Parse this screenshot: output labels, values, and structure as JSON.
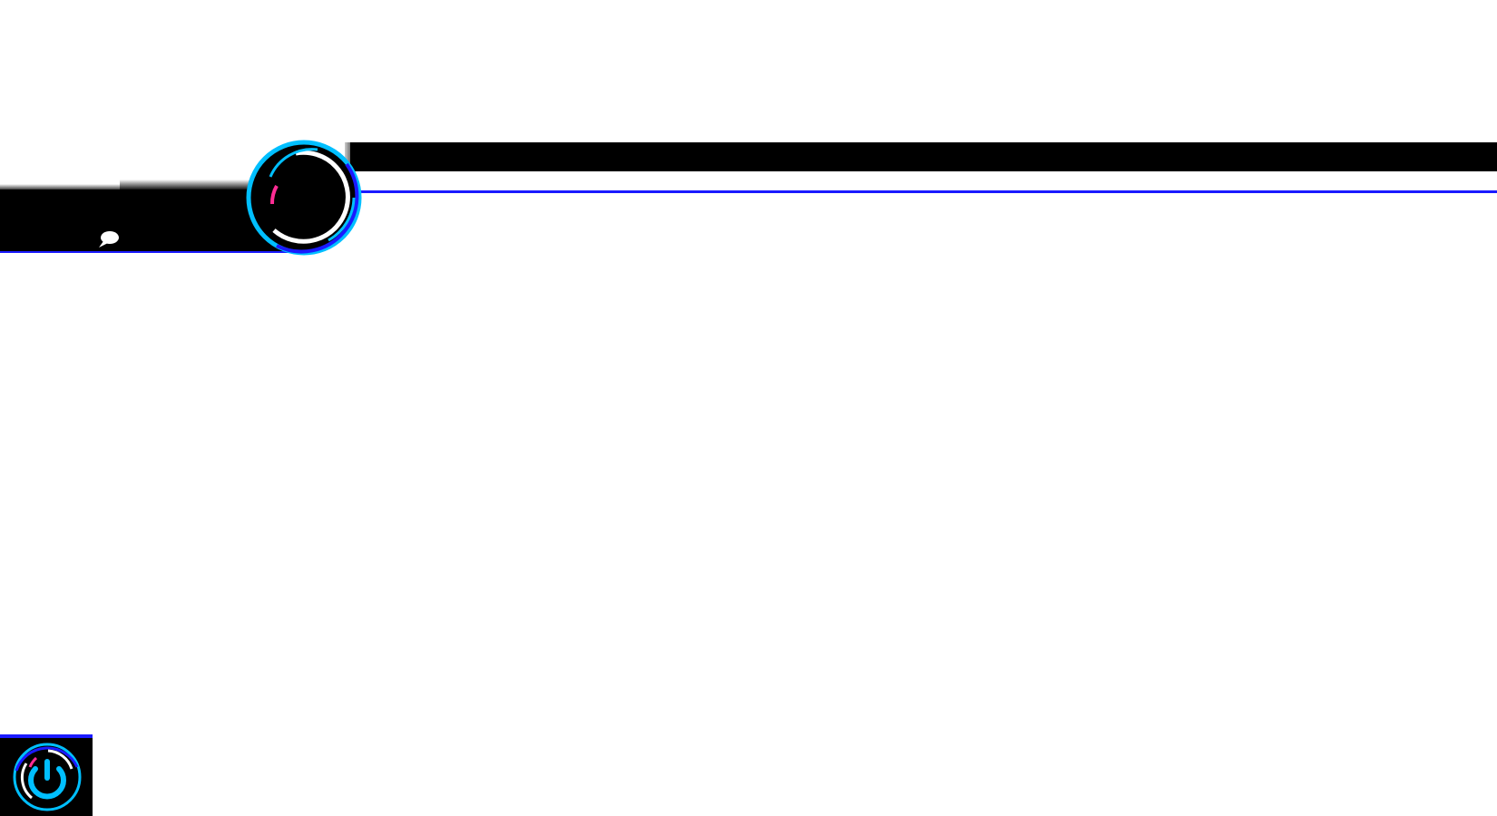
{
  "colors": {
    "accent_cyan": "#00bfff",
    "accent_blue": "#1a1aff",
    "accent_pink": "#ff2d95",
    "panel": "#000000"
  },
  "icons": {
    "hub": "circular-menu-icon",
    "chat": "speech-bubble-icon",
    "power": "power-icon"
  }
}
